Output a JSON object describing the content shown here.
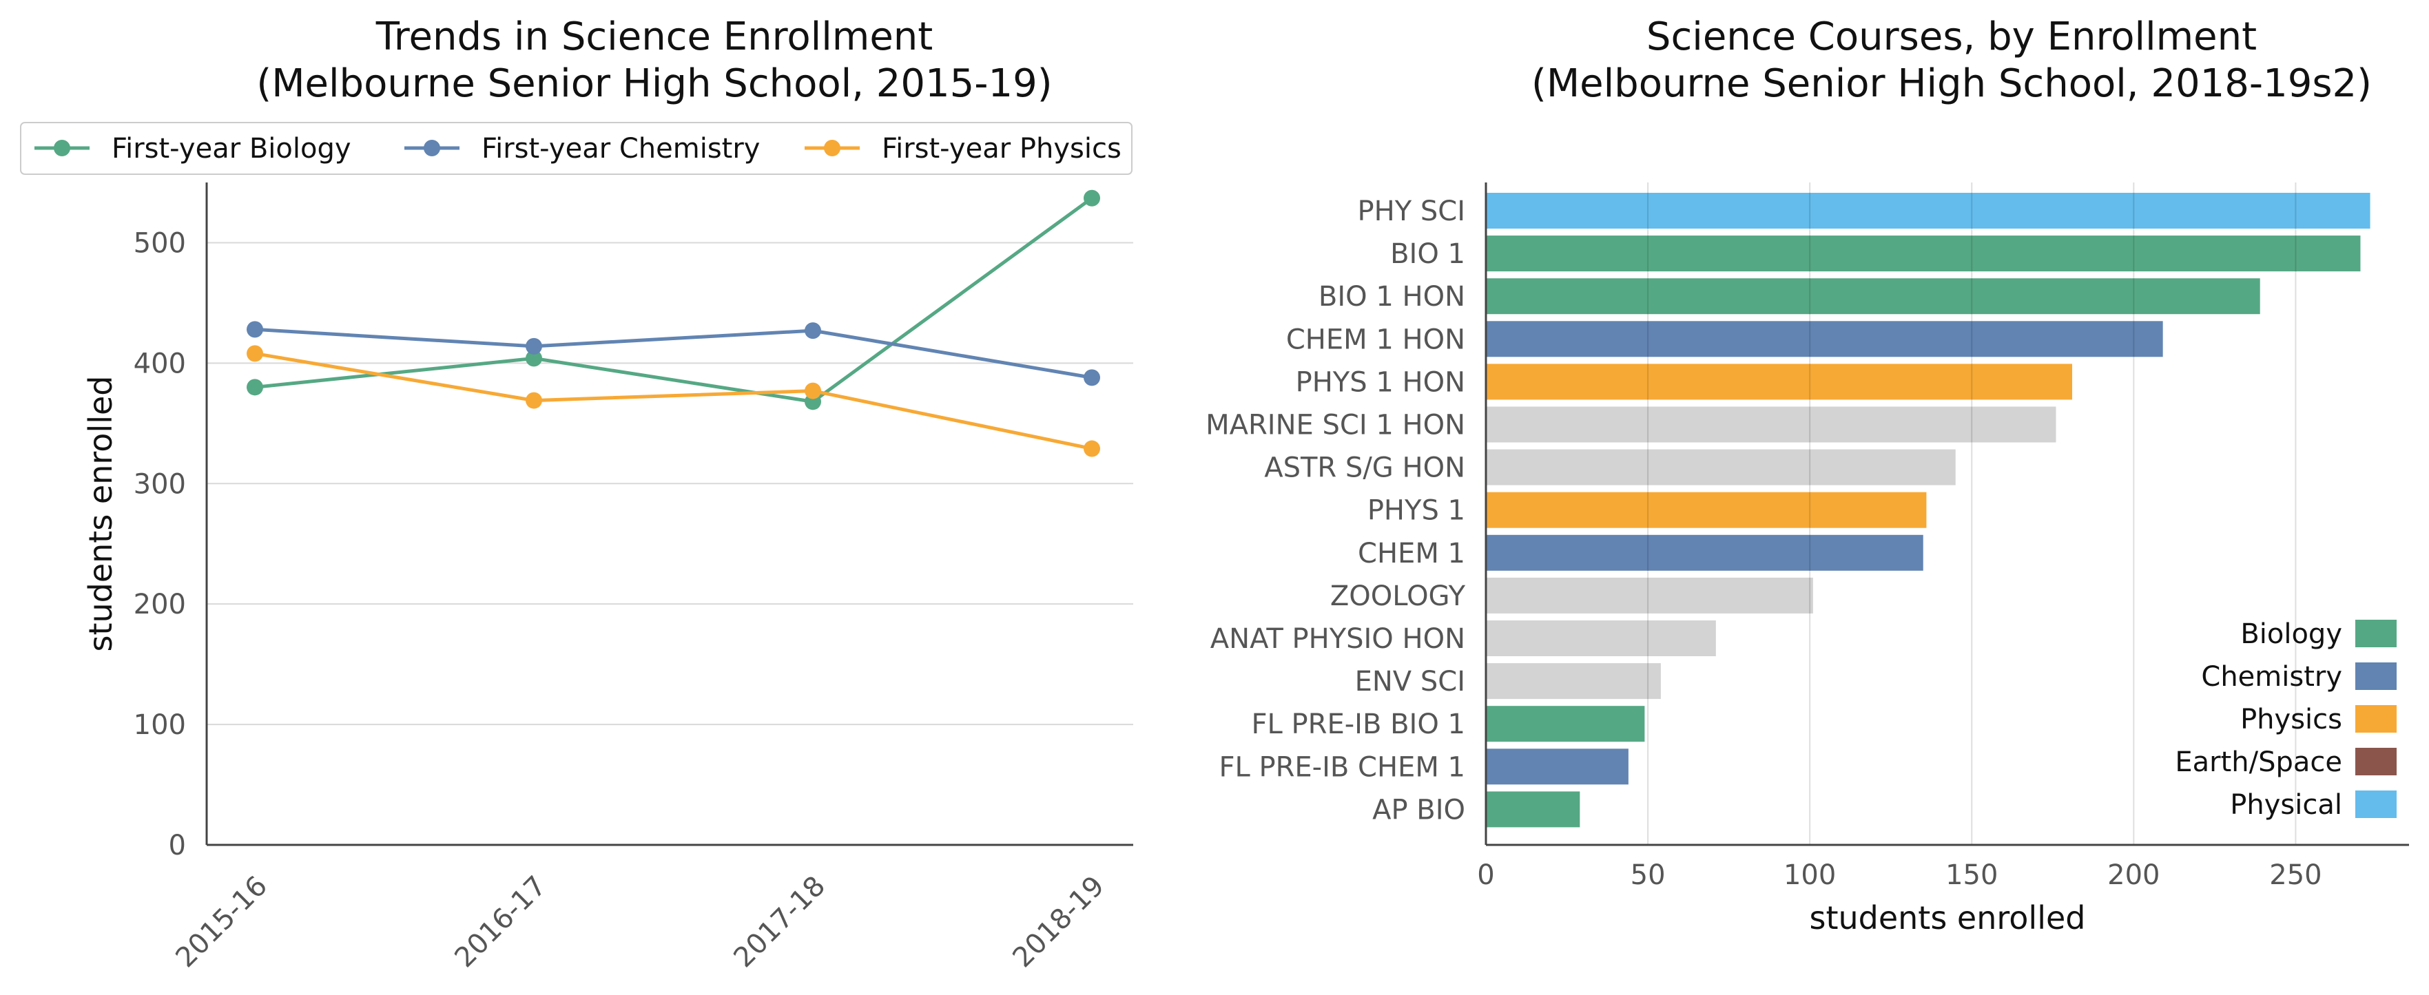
{
  "chart_data": [
    {
      "type": "line",
      "title": "Trends in Science Enrollment\n(Melbourne Senior High School, 2015-19)",
      "xlabel": "",
      "ylabel": "students enrolled",
      "categories": [
        "2015-16",
        "2016-17",
        "2017-18",
        "2018-19"
      ],
      "ylim": [
        0,
        550
      ],
      "yticks": [
        0,
        100,
        200,
        300,
        400,
        500
      ],
      "grid": "horizontal",
      "legend": "top",
      "series": [
        {
          "name": "First-year Biology",
          "color": "#55a884",
          "values": [
            380,
            404,
            368,
            537
          ]
        },
        {
          "name": "First-year Chemistry",
          "color": "#6184b2",
          "values": [
            428,
            414,
            427,
            388
          ]
        },
        {
          "name": "First-year Physics",
          "color": "#f7a935",
          "values": [
            408,
            369,
            377,
            329
          ]
        }
      ]
    },
    {
      "type": "bar",
      "orientation": "horizontal",
      "title": "Science Courses, by Enrollment\n(Melbourne Senior High School, 2018-19s2)",
      "xlabel": "students enrolled",
      "ylabel": "",
      "xlim": [
        0,
        285
      ],
      "xticks": [
        0,
        50,
        100,
        150,
        200,
        250
      ],
      "grid": "vertical",
      "legend": "lower-right",
      "colors": {
        "Biology": "#55a884",
        "Chemistry": "#6184b2",
        "Physics": "#f7a935",
        "Earth/Space": "#8b554c",
        "Physical": "#63bcec",
        "Other": "#d3d3d3"
      },
      "legend_items": [
        "Biology",
        "Chemistry",
        "Physics",
        "Earth/Space",
        "Physical"
      ],
      "bars": [
        {
          "label": "PHY SCI",
          "value": 273,
          "group": "Physical"
        },
        {
          "label": "BIO 1",
          "value": 270,
          "group": "Biology"
        },
        {
          "label": "BIO 1 HON",
          "value": 239,
          "group": "Biology"
        },
        {
          "label": "CHEM 1 HON",
          "value": 209,
          "group": "Chemistry"
        },
        {
          "label": "PHYS 1 HON",
          "value": 181,
          "group": "Physics"
        },
        {
          "label": "MARINE SCI 1 HON",
          "value": 176,
          "group": "Other"
        },
        {
          "label": "ASTR S/G HON",
          "value": 145,
          "group": "Other"
        },
        {
          "label": "PHYS 1",
          "value": 136,
          "group": "Physics"
        },
        {
          "label": "CHEM 1",
          "value": 135,
          "group": "Chemistry"
        },
        {
          "label": "ZOOLOGY",
          "value": 101,
          "group": "Other"
        },
        {
          "label": "ANAT PHYSIO HON",
          "value": 71,
          "group": "Other"
        },
        {
          "label": "ENV SCI",
          "value": 54,
          "group": "Other"
        },
        {
          "label": "FL PRE-IB BIO 1",
          "value": 49,
          "group": "Biology"
        },
        {
          "label": "FL PRE-IB CHEM 1",
          "value": 44,
          "group": "Chemistry"
        },
        {
          "label": "AP BIO",
          "value": 29,
          "group": "Biology"
        }
      ]
    }
  ]
}
